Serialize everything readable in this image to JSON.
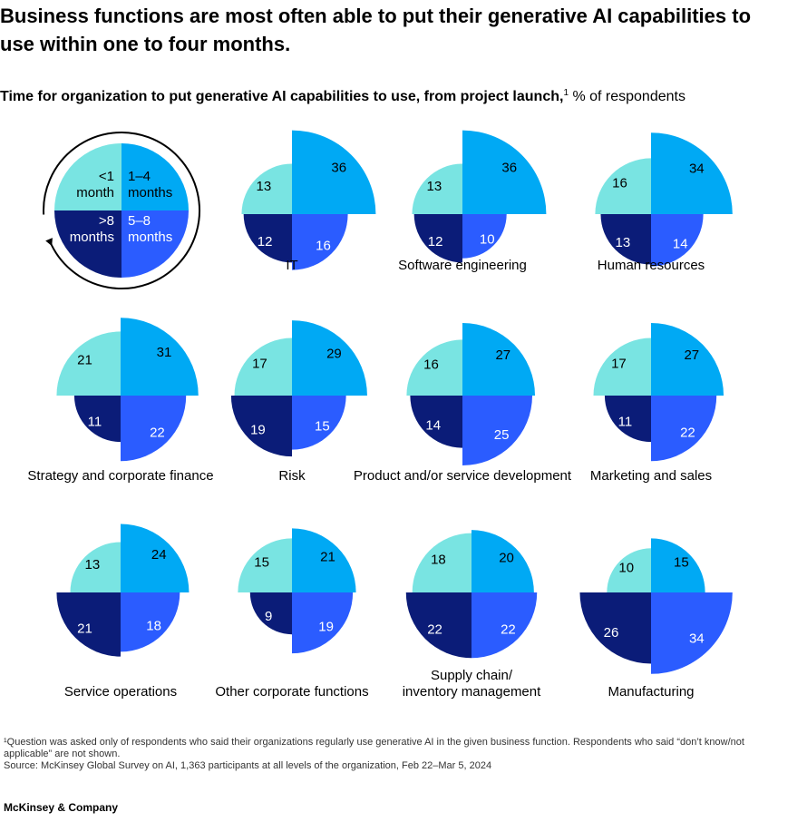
{
  "title": "Business functions are most often able to put their generative AI capabilities to use within one to four months.",
  "subtitle": {
    "bold": "Time for organization to put generative AI capabilities to use, from project launch,",
    "sup": "1",
    "normal": " % of respondents"
  },
  "colors": {
    "lt1": "#79e4e2",
    "m1to4": "#00a9f4",
    "m5to8": "#2b5cff",
    "gt8": "#0b1c78"
  },
  "legend": {
    "lt1": "<1 month",
    "m1to4": "1–4 months",
    "m5to8": "5–8 months",
    "gt8": ">8 months"
  },
  "chart_data": {
    "type": "polar-area quadrant",
    "quadrants": [
      "<1 month",
      "1–4 months",
      "5–8 months",
      ">8 months"
    ],
    "series": [
      {
        "name": "IT",
        "lt1": 13,
        "m1to4": 36,
        "m5to8": 16,
        "gt8": 12
      },
      {
        "name": "Software engineering",
        "lt1": 13,
        "m1to4": 36,
        "m5to8": 10,
        "gt8": 12
      },
      {
        "name": "Human resources",
        "lt1": 16,
        "m1to4": 34,
        "m5to8": 14,
        "gt8": 13
      },
      {
        "name": "Strategy and corporate finance",
        "lt1": 21,
        "m1to4": 31,
        "m5to8": 22,
        "gt8": 11
      },
      {
        "name": "Risk",
        "lt1": 17,
        "m1to4": 29,
        "m5to8": 15,
        "gt8": 19
      },
      {
        "name": "Product and/or service development",
        "lt1": 16,
        "m1to4": 27,
        "m5to8": 25,
        "gt8": 14
      },
      {
        "name": "Marketing and sales",
        "lt1": 17,
        "m1to4": 27,
        "m5to8": 22,
        "gt8": 11
      },
      {
        "name": "Service operations",
        "lt1": 13,
        "m1to4": 24,
        "m5to8": 18,
        "gt8": 21
      },
      {
        "name": "Other corporate functions",
        "lt1": 15,
        "m1to4": 21,
        "m5to8": 19,
        "gt8": 9
      },
      {
        "name": "Supply chain/ inventory management",
        "lt1": 18,
        "m1to4": 20,
        "m5to8": 22,
        "gt8": 22
      },
      {
        "name": "Manufacturing",
        "lt1": 10,
        "m1to4": 15,
        "m5to8": 34,
        "gt8": 26
      }
    ]
  },
  "footnotes": {
    "note1": "¹Question was asked only of respondents who said their organizations regularly use generative AI in the given business function. Respondents who said “don’t know/not applicable” are not shown.",
    "source": "Source: McKinsey Global Survey on AI, 1,363 participants at all levels of the organization, Feb 22–Mar 5, 2024"
  },
  "brand": "McKinsey & Company"
}
